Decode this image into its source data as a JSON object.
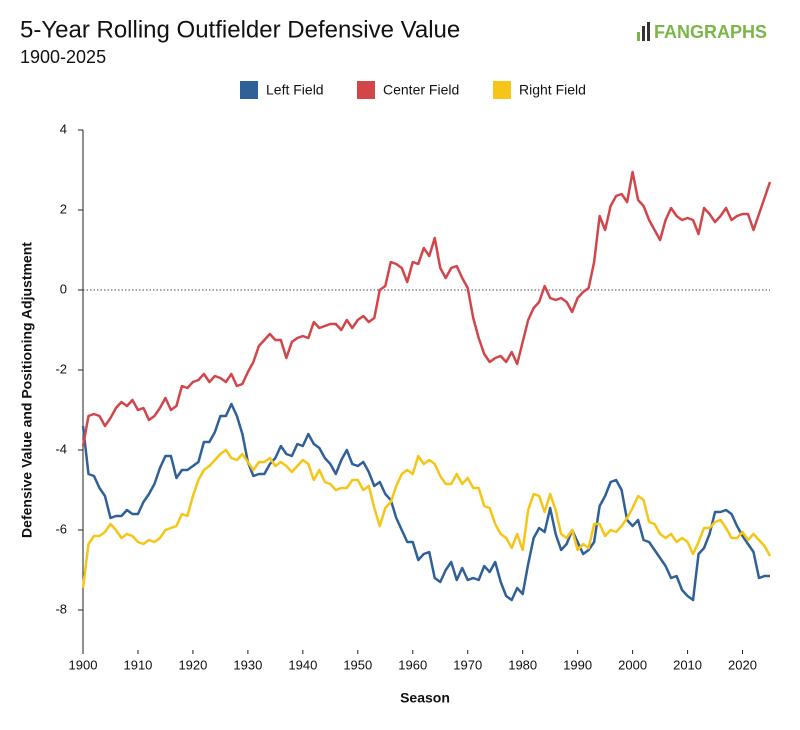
{
  "chart_data": {
    "type": "line",
    "title": "5-Year Rolling Outfielder Defensive Value",
    "subtitle": "1900-2025",
    "logo": "FANGRAPHS",
    "x_label": "Season",
    "y_label": "Defensive Value and Positioning Adjustment",
    "xlim": [
      1900,
      2025
    ],
    "ylim": [
      -9,
      4
    ],
    "xticks": [
      1900,
      1910,
      1920,
      1930,
      1940,
      1950,
      1960,
      1970,
      1980,
      1990,
      2000,
      2010,
      2020
    ],
    "yticks": [
      -8,
      -6,
      -4,
      -2,
      0,
      2,
      4
    ],
    "zero_line": 0,
    "x": [
      1900,
      1901,
      1902,
      1903,
      1904,
      1905,
      1906,
      1907,
      1908,
      1909,
      1910,
      1911,
      1912,
      1913,
      1914,
      1915,
      1916,
      1917,
      1918,
      1919,
      1920,
      1921,
      1922,
      1923,
      1924,
      1925,
      1926,
      1927,
      1928,
      1929,
      1930,
      1931,
      1932,
      1933,
      1934,
      1935,
      1936,
      1937,
      1938,
      1939,
      1940,
      1941,
      1942,
      1943,
      1944,
      1945,
      1946,
      1947,
      1948,
      1949,
      1950,
      1951,
      1952,
      1953,
      1954,
      1955,
      1956,
      1957,
      1958,
      1959,
      1960,
      1961,
      1962,
      1963,
      1964,
      1965,
      1966,
      1967,
      1968,
      1969,
      1970,
      1971,
      1972,
      1973,
      1974,
      1975,
      1976,
      1977,
      1978,
      1979,
      1980,
      1981,
      1982,
      1983,
      1984,
      1985,
      1986,
      1987,
      1988,
      1989,
      1990,
      1991,
      1992,
      1993,
      1994,
      1995,
      1996,
      1997,
      1998,
      1999,
      2000,
      2001,
      2002,
      2003,
      2004,
      2005,
      2006,
      2007,
      2008,
      2009,
      2010,
      2011,
      2012,
      2013,
      2014,
      2015,
      2016,
      2017,
      2018,
      2019,
      2020,
      2021,
      2022,
      2023,
      2024,
      2025
    ],
    "series": [
      {
        "name": "Left Field",
        "color": "#2f6096",
        "values": [
          -3.4,
          -4.6,
          -4.65,
          -4.95,
          -5.15,
          -5.7,
          -5.65,
          -5.65,
          -5.5,
          -5.6,
          -5.6,
          -5.3,
          -5.1,
          -4.85,
          -4.45,
          -4.15,
          -4.15,
          -4.7,
          -4.5,
          -4.5,
          -4.4,
          -4.3,
          -3.8,
          -3.8,
          -3.55,
          -3.15,
          -3.15,
          -2.85,
          -3.15,
          -3.6,
          -4.3,
          -4.65,
          -4.6,
          -4.6,
          -4.35,
          -4.2,
          -3.9,
          -4.1,
          -4.15,
          -3.85,
          -3.9,
          -3.6,
          -3.85,
          -3.95,
          -4.2,
          -4.35,
          -4.6,
          -4.25,
          -4.0,
          -4.35,
          -4.4,
          -4.3,
          -4.55,
          -4.9,
          -4.8,
          -5.1,
          -5.25,
          -5.7,
          -6.0,
          -6.3,
          -6.3,
          -6.75,
          -6.6,
          -6.55,
          -7.2,
          -7.3,
          -7.0,
          -6.8,
          -7.25,
          -6.95,
          -7.25,
          -7.2,
          -7.25,
          -6.9,
          -7.05,
          -6.8,
          -7.3,
          -7.65,
          -7.75,
          -7.45,
          -7.6,
          -6.85,
          -6.2,
          -5.95,
          -6.05,
          -5.45,
          -6.1,
          -6.5,
          -6.35,
          -6.0,
          -6.3,
          -6.6,
          -6.5,
          -6.3,
          -5.4,
          -5.15,
          -4.8,
          -4.75,
          -5.0,
          -5.75,
          -5.9,
          -5.75,
          -6.25,
          -6.3,
          -6.5,
          -6.7,
          -6.9,
          -7.2,
          -7.15,
          -7.5,
          -7.65,
          -7.75,
          -6.6,
          -6.45,
          -6.1,
          -5.55,
          -5.55,
          -5.5,
          -5.6,
          -5.9,
          -6.15,
          -6.35,
          -6.55,
          -7.2,
          -7.15,
          -7.15
        ]
      },
      {
        "name": "Center Field",
        "color": "#d2464a",
        "values": [
          -3.9,
          -3.15,
          -3.1,
          -3.15,
          -3.4,
          -3.2,
          -2.95,
          -2.8,
          -2.9,
          -2.75,
          -3.0,
          -2.95,
          -3.25,
          -3.15,
          -2.95,
          -2.7,
          -3.0,
          -2.9,
          -2.4,
          -2.45,
          -2.3,
          -2.25,
          -2.1,
          -2.3,
          -2.15,
          -2.2,
          -2.3,
          -2.1,
          -2.4,
          -2.35,
          -2.05,
          -1.8,
          -1.4,
          -1.25,
          -1.1,
          -1.25,
          -1.25,
          -1.7,
          -1.3,
          -1.2,
          -1.15,
          -1.2,
          -0.8,
          -0.95,
          -0.9,
          -0.85,
          -0.85,
          -1.0,
          -0.75,
          -0.95,
          -0.75,
          -0.65,
          -0.8,
          -0.7,
          0.0,
          0.1,
          0.7,
          0.65,
          0.55,
          0.2,
          0.7,
          0.65,
          1.05,
          0.85,
          1.3,
          0.55,
          0.3,
          0.55,
          0.6,
          0.3,
          0.05,
          -0.7,
          -1.2,
          -1.6,
          -1.8,
          -1.7,
          -1.65,
          -1.8,
          -1.55,
          -1.85,
          -1.3,
          -0.75,
          -0.45,
          -0.3,
          0.1,
          -0.2,
          -0.25,
          -0.2,
          -0.3,
          -0.55,
          -0.2,
          -0.05,
          0.05,
          0.7,
          1.85,
          1.5,
          2.1,
          2.35,
          2.4,
          2.2,
          2.95,
          2.25,
          2.1,
          1.75,
          1.5,
          1.25,
          1.75,
          2.05,
          1.85,
          1.75,
          1.8,
          1.75,
          1.4,
          2.05,
          1.9,
          1.7,
          1.85,
          2.05,
          1.75,
          1.85,
          1.9,
          1.9,
          1.5,
          1.9,
          2.3,
          2.7
        ]
      },
      {
        "name": "Right Field",
        "color": "#f5c518",
        "values": [
          -7.45,
          -6.35,
          -6.15,
          -6.15,
          -6.05,
          -5.85,
          -6.0,
          -6.2,
          -6.1,
          -6.15,
          -6.3,
          -6.35,
          -6.25,
          -6.3,
          -6.2,
          -6.0,
          -5.95,
          -5.9,
          -5.6,
          -5.65,
          -5.15,
          -4.75,
          -4.5,
          -4.4,
          -4.25,
          -4.1,
          -4.0,
          -4.2,
          -4.25,
          -4.1,
          -4.3,
          -4.5,
          -4.3,
          -4.3,
          -4.2,
          -4.4,
          -4.3,
          -4.4,
          -4.55,
          -4.4,
          -4.25,
          -4.35,
          -4.75,
          -4.5,
          -4.8,
          -4.85,
          -5.0,
          -4.95,
          -4.95,
          -4.75,
          -4.75,
          -5.0,
          -4.9,
          -5.45,
          -5.9,
          -5.45,
          -5.3,
          -4.9,
          -4.6,
          -4.5,
          -4.6,
          -4.15,
          -4.35,
          -4.25,
          -4.35,
          -4.65,
          -4.85,
          -4.85,
          -4.6,
          -4.85,
          -4.7,
          -4.95,
          -4.95,
          -5.4,
          -5.45,
          -5.85,
          -6.1,
          -6.2,
          -6.45,
          -6.1,
          -6.5,
          -5.5,
          -5.1,
          -5.15,
          -5.55,
          -5.1,
          -5.5,
          -6.1,
          -6.2,
          -6.0,
          -6.5,
          -6.35,
          -6.45,
          -5.85,
          -5.85,
          -6.15,
          -6.0,
          -6.05,
          -5.9,
          -5.7,
          -5.45,
          -5.15,
          -5.25,
          -5.8,
          -5.85,
          -6.1,
          -6.2,
          -6.1,
          -6.3,
          -6.2,
          -6.3,
          -6.6,
          -6.3,
          -5.95,
          -5.95,
          -5.8,
          -5.75,
          -5.95,
          -6.2,
          -6.2,
          -6.05,
          -6.25,
          -6.1,
          -6.25,
          -6.4,
          -6.65
        ]
      }
    ]
  }
}
